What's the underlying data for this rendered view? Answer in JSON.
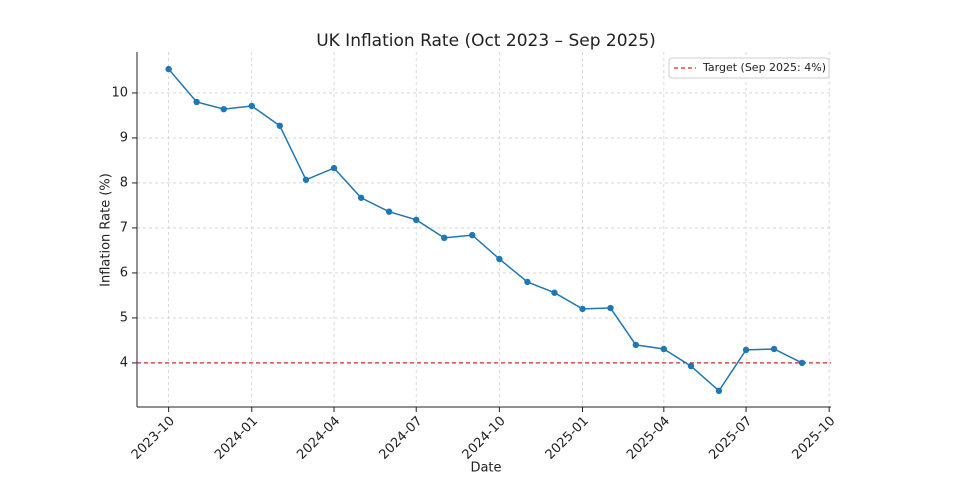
{
  "chart_data": {
    "type": "line",
    "title": "UK Inflation Rate (Oct 2023 – Sep 2025)",
    "x_label": "Date",
    "y_label": "Inflation Rate (%)",
    "x": [
      "2023-10",
      "2023-11",
      "2023-12",
      "2024-01",
      "2024-02",
      "2024-03",
      "2024-04",
      "2024-05",
      "2024-06",
      "2024-07",
      "2024-08",
      "2024-09",
      "2024-10",
      "2024-11",
      "2024-12",
      "2025-01",
      "2025-02",
      "2025-03",
      "2025-04",
      "2025-05",
      "2025-06",
      "2025-07",
      "2025-08",
      "2025-09"
    ],
    "series": [
      {
        "color": "#1f77b4",
        "values": [
          10.53,
          9.8,
          9.64,
          9.71,
          9.27,
          8.07,
          8.33,
          7.67,
          7.36,
          7.18,
          6.78,
          6.84,
          6.31,
          5.8,
          5.56,
          5.2,
          5.22,
          4.4,
          4.31,
          3.93,
          3.38,
          4.29,
          4.31,
          4.0
        ]
      }
    ],
    "target": {
      "value": 4,
      "label": "Target (Sep 2025: 4%)",
      "color": "#d62728"
    },
    "xlim": [
      "2023-08-27",
      "2025-10-03"
    ],
    "xticks": [
      "2023-10",
      "2024-01",
      "2024-04",
      "2024-07",
      "2024-10",
      "2025-01",
      "2025-04",
      "2025-07",
      "2025-10"
    ],
    "ylim": [
      3.02,
      10.91
    ],
    "yticks": [
      4,
      5,
      6,
      7,
      8,
      9,
      10
    ],
    "grid": true,
    "legend": "upper right"
  }
}
